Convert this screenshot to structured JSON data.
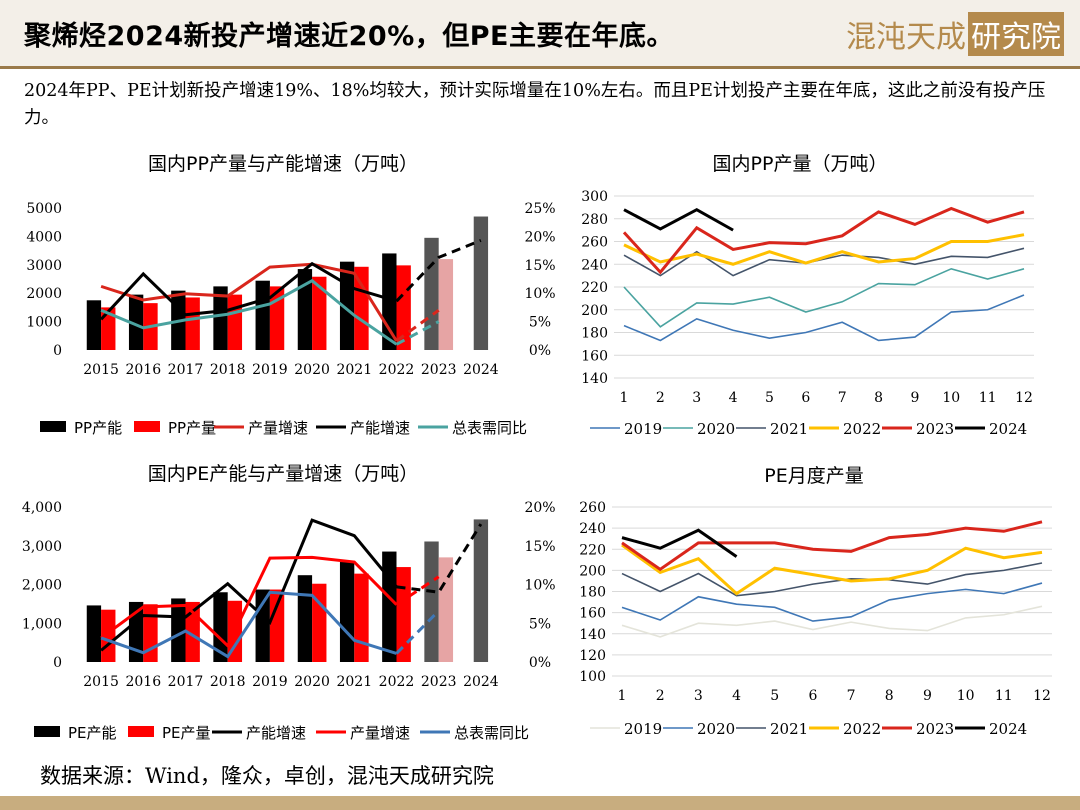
{
  "header": {
    "title": "聚烯烃2024新投产增速近20%，但PE主要在年底。",
    "logo_text": "混沌天成",
    "logo_box_text": "研究院"
  },
  "intro": "2024年PP、PE计划新投产增速19%、18%均较大，预计实际增量在10%左右。而且PE计划投产主要在年底，这此之前没有投产压力。",
  "source": "数据来源：Wind，隆众，卓创，混沌天成研究院",
  "colors": {
    "black": "#000000",
    "red": "#ff0000",
    "darkred": "#d9261c",
    "teal": "#4aa3a0",
    "blue": "#3f77b6",
    "gray": "#555555",
    "pink": "#e6a4a4",
    "yellow": "#ffc000",
    "darkslate": "#44546a",
    "light": "#e4e4da"
  },
  "chart_data": [
    {
      "id": "pp_capacity",
      "type": "bar",
      "title": "国内PP产量与产能增速（万吨）",
      "categories": [
        "2015",
        "2016",
        "2017",
        "2018",
        "2019",
        "2020",
        "2021",
        "2022",
        "2023",
        "2024"
      ],
      "ylim": [
        0,
        5000
      ],
      "y_ticks": [
        "0",
        "1000",
        "2000",
        "3000",
        "4000",
        "5000"
      ],
      "y2lim": [
        0,
        25
      ],
      "y2_ticks": [
        "0%",
        "5%",
        "10%",
        "15%",
        "20%",
        "25%"
      ],
      "series": [
        {
          "name": "PP产能",
          "kind": "bar",
          "values": [
            1750,
            1950,
            2090,
            2240,
            2440,
            2850,
            3110,
            3400,
            3950,
            4700
          ]
        },
        {
          "name": "PP产量",
          "kind": "bar",
          "values": [
            1500,
            1650,
            1850,
            1950,
            2240,
            2580,
            2930,
            2980,
            3200,
            null
          ]
        },
        {
          "name": "产量增速",
          "kind": "line",
          "axis": "right",
          "values": [
            11.2,
            8.8,
            9.9,
            9.5,
            14.6,
            15.1,
            13.5,
            1.6,
            7.0,
            null
          ]
        },
        {
          "name": "产能增速",
          "kind": "line",
          "axis": "right",
          "values": [
            5.4,
            13.4,
            6.2,
            7.0,
            9.2,
            15.2,
            10.8,
            8.6,
            16.3,
            19.3
          ]
        },
        {
          "name": "总表需同比",
          "kind": "line",
          "axis": "right",
          "values": [
            7.0,
            3.9,
            5.3,
            6.3,
            8.1,
            12.2,
            6.1,
            1.0,
            5.0,
            null
          ]
        }
      ]
    },
    {
      "id": "pp_monthly",
      "type": "line",
      "title": "国内PP产量（万吨）",
      "categories": [
        "1",
        "2",
        "3",
        "4",
        "5",
        "6",
        "7",
        "8",
        "9",
        "10",
        "11",
        "12"
      ],
      "ylim": [
        140,
        300
      ],
      "y_ticks": [
        "140",
        "160",
        "180",
        "200",
        "220",
        "240",
        "260",
        "280",
        "300"
      ],
      "series": [
        {
          "name": "2019",
          "values": [
            186,
            173,
            192,
            182,
            175,
            180,
            189,
            173,
            176,
            198,
            200,
            213
          ]
        },
        {
          "name": "2020",
          "values": [
            220,
            185,
            206,
            205,
            211,
            198,
            207,
            223,
            222,
            236,
            227,
            236
          ]
        },
        {
          "name": "2021",
          "values": [
            248,
            230,
            251,
            230,
            244,
            241,
            248,
            246,
            240,
            247,
            246,
            254
          ]
        },
        {
          "name": "2022",
          "values": [
            257,
            242,
            249,
            240,
            251,
            241,
            251,
            242,
            245,
            260,
            260,
            266
          ]
        },
        {
          "name": "2023",
          "values": [
            268,
            233,
            272,
            253,
            259,
            258,
            265,
            286,
            275,
            289,
            277,
            286
          ]
        },
        {
          "name": "2024",
          "values": [
            288,
            271,
            288,
            270,
            null,
            null,
            null,
            null,
            null,
            null,
            null,
            null
          ]
        }
      ]
    },
    {
      "id": "pe_capacity",
      "type": "bar",
      "title": "国内PE产能与产量增速（万吨）",
      "categories": [
        "2015",
        "2016",
        "2017",
        "2018",
        "2019",
        "2020",
        "2021",
        "2022",
        "2023",
        "2024"
      ],
      "ylim": [
        0,
        4000
      ],
      "y_ticks": [
        "0",
        "1,000",
        "2,000",
        "3,000",
        "4,000"
      ],
      "y2lim": [
        0,
        20
      ],
      "y2_ticks": [
        "0%",
        "5%",
        "10%",
        "15%",
        "20%"
      ],
      "series": [
        {
          "name": "PE产能",
          "kind": "bar",
          "values": [
            1460,
            1550,
            1640,
            1800,
            1870,
            2240,
            2580,
            2850,
            3110,
            3680
          ]
        },
        {
          "name": "PE产量",
          "kind": "bar",
          "values": [
            1350,
            1490,
            1550,
            1580,
            1870,
            2020,
            2280,
            2450,
            2700,
            null
          ]
        },
        {
          "name": "产能增速",
          "kind": "line",
          "axis": "right",
          "values": [
            1.5,
            6.0,
            5.8,
            10.1,
            5.1,
            18.3,
            16.3,
            9.7,
            9.0,
            17.8
          ]
        },
        {
          "name": "产量增速",
          "kind": "line",
          "axis": "right",
          "values": [
            3.1,
            7.1,
            7.3,
            2.1,
            13.4,
            13.5,
            12.9,
            7.4,
            11.0,
            null
          ]
        },
        {
          "name": "总表需同比",
          "kind": "line",
          "axis": "right",
          "values": [
            3.1,
            1.2,
            4.0,
            0.7,
            9.0,
            8.6,
            2.8,
            1.1,
            6.6,
            null
          ]
        }
      ]
    },
    {
      "id": "pe_monthly",
      "type": "line",
      "title": "PE月度产量",
      "categories": [
        "1",
        "2",
        "3",
        "4",
        "5",
        "6",
        "7",
        "8",
        "9",
        "10",
        "11",
        "12"
      ],
      "ylim": [
        100,
        260
      ],
      "y_ticks": [
        "100",
        "120",
        "140",
        "160",
        "180",
        "200",
        "220",
        "240",
        "260"
      ],
      "series": [
        {
          "name": "2019",
          "values": [
            148,
            137,
            150,
            148,
            152,
            144,
            151,
            145,
            143,
            155,
            158,
            166
          ]
        },
        {
          "name": "2020",
          "values": [
            165,
            153,
            175,
            168,
            165,
            152,
            156,
            172,
            178,
            182,
            178,
            188
          ]
        },
        {
          "name": "2021",
          "values": [
            197,
            180,
            197,
            176,
            180,
            187,
            192,
            191,
            187,
            196,
            200,
            207
          ]
        },
        {
          "name": "2022",
          "values": [
            224,
            198,
            211,
            178,
            202,
            196,
            190,
            192,
            200,
            221,
            212,
            217
          ]
        },
        {
          "name": "2023",
          "values": [
            226,
            201,
            226,
            226,
            226,
            220,
            218,
            231,
            234,
            240,
            237,
            246
          ]
        },
        {
          "name": "2024",
          "values": [
            231,
            221,
            238,
            213,
            null,
            null,
            null,
            null,
            null,
            null,
            null,
            null
          ]
        }
      ]
    }
  ]
}
